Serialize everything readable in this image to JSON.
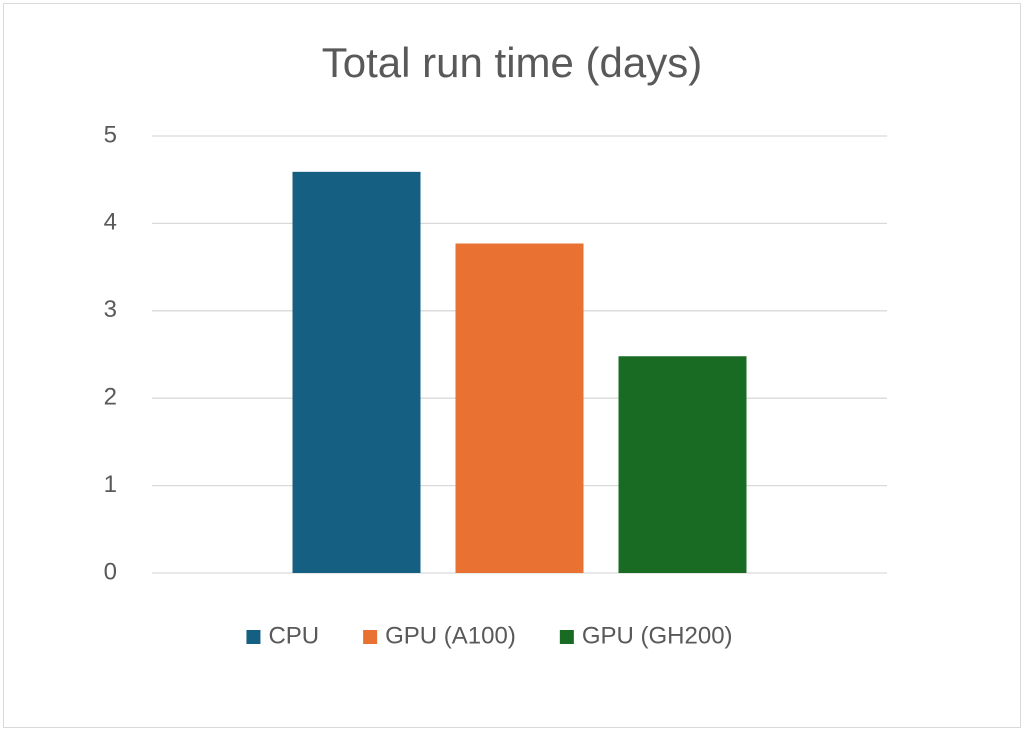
{
  "chart_data": {
    "type": "bar",
    "title": "Total run time (days)",
    "categories": [
      null
    ],
    "series": [
      {
        "name": "CPU",
        "color": "#156082",
        "values": [
          4.59
        ]
      },
      {
        "name": "GPU (A100)",
        "color": "#e97132",
        "values": [
          3.77
        ]
      },
      {
        "name": "GPU (GH200)",
        "color": "#196b24",
        "values": [
          2.48
        ]
      }
    ],
    "ylim": [
      0,
      5
    ],
    "yticks": [
      0,
      1,
      2,
      3,
      4,
      5
    ],
    "grid": true,
    "legend": "bottom"
  }
}
